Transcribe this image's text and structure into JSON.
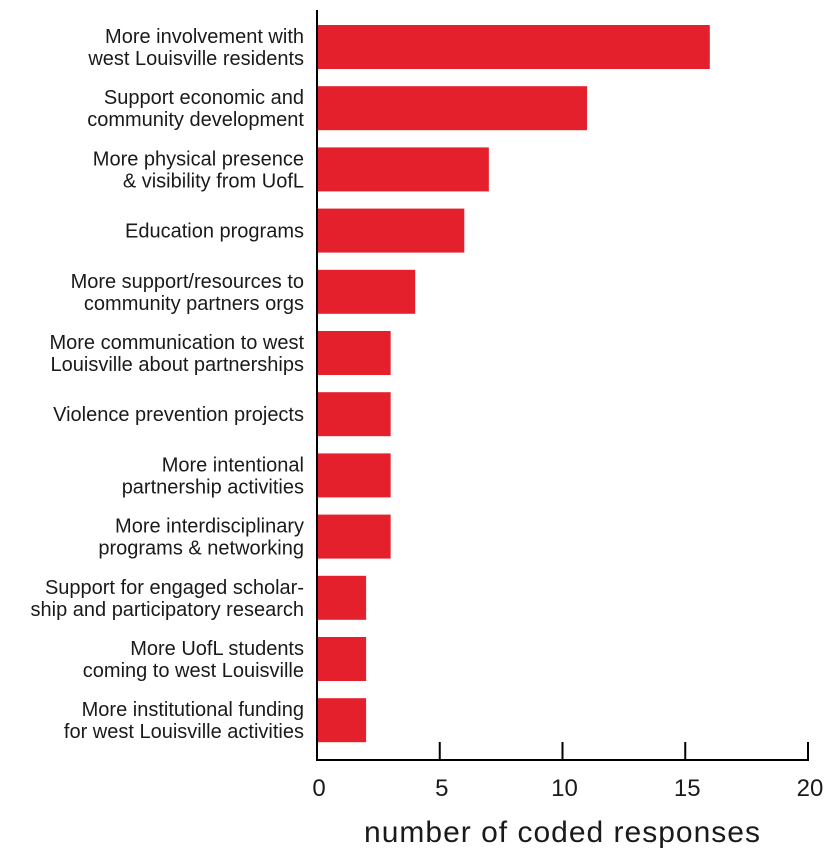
{
  "chart_data": {
    "type": "bar",
    "orientation": "horizontal",
    "categories": [
      [
        "More involvement with",
        "west Louisville residents"
      ],
      [
        "Support economic and",
        "community development"
      ],
      [
        "More physical presence",
        "& visibility from UofL"
      ],
      [
        "Education programs"
      ],
      [
        "More support/resources to",
        "community partners orgs"
      ],
      [
        "More communication to west",
        "Louisville about partnerships"
      ],
      [
        "Violence prevention projects"
      ],
      [
        "More intentional",
        "partnership activities"
      ],
      [
        "More interdisciplinary",
        "programs & networking"
      ],
      [
        "Support for engaged scholar-",
        "ship and participatory research"
      ],
      [
        "More UofL students",
        "coming to west Louisville"
      ],
      [
        "More institutional funding",
        "for west Louisville activities"
      ]
    ],
    "values": [
      16,
      11,
      7,
      6,
      4,
      3,
      3,
      3,
      3,
      2,
      2,
      2
    ],
    "xlabel": "number of coded responses",
    "xlim": [
      0,
      20
    ],
    "xticks": [
      0,
      5,
      10,
      15,
      20
    ],
    "grid": false,
    "bar_color": "#e3202b"
  }
}
